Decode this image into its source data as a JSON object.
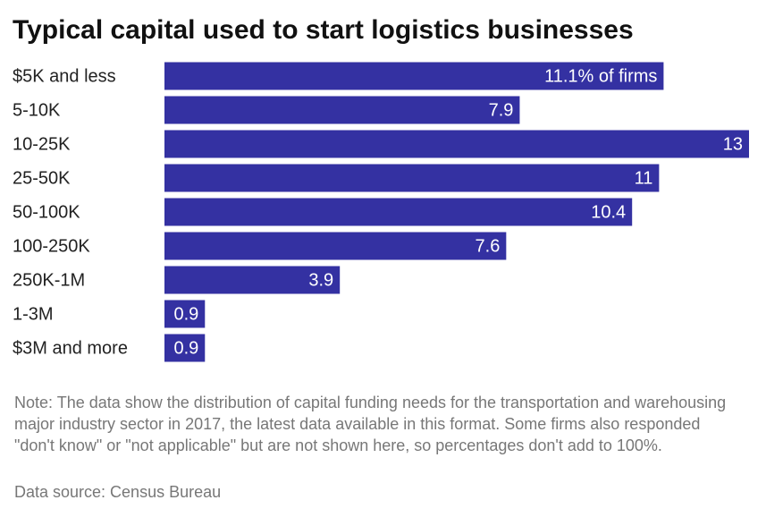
{
  "chart_data": {
    "type": "bar",
    "orientation": "horizontal",
    "title": "Typical capital used to start logistics businesses",
    "categories": [
      "$5K and less",
      "5-10K",
      "10-25K",
      "25-50K",
      "50-100K",
      "100-250K",
      "250K-1M",
      "1-3M",
      "$3M and more"
    ],
    "values": [
      11.1,
      7.9,
      13,
      11,
      10.4,
      7.6,
      3.9,
      0.9,
      0.9
    ],
    "value_labels": [
      "11.1% of firms",
      "7.9",
      "13",
      "11",
      "10.4",
      "7.6",
      "3.9",
      "0.9",
      "0.9"
    ],
    "color": "#3431a2",
    "note": "Note: The data show the distribution of capital funding needs for the transportation and warehousing major industry sector in 2017, the latest data available in this format. Some firms also responded \"don't know\" or \"not applicable\" but are not shown here, so percentages don't add to 100%.",
    "source": "Data source: Census Bureau"
  }
}
